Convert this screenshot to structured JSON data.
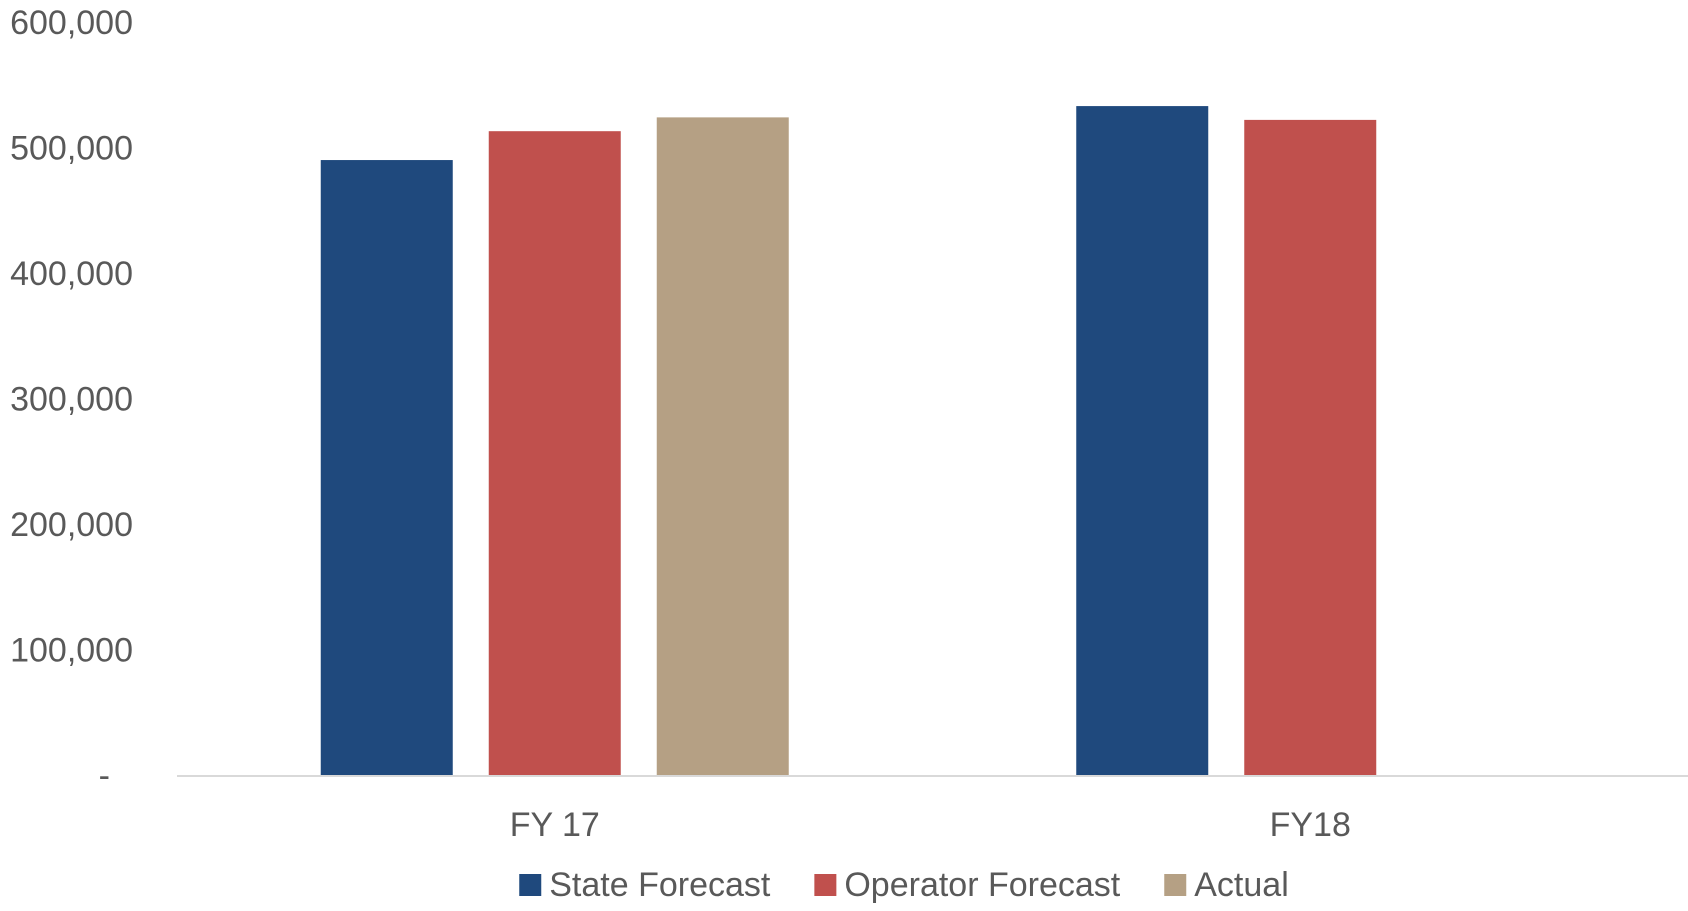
{
  "chart_data": {
    "type": "bar",
    "categories": [
      "FY 17",
      "FY18"
    ],
    "series": [
      {
        "name": "State Forecast",
        "values": [
          490000,
          533000
        ],
        "color": "#1f497d"
      },
      {
        "name": "Operator Forecast",
        "values": [
          513000,
          522000
        ],
        "color": "#c0504d"
      },
      {
        "name": "Actual",
        "values": [
          524000,
          null
        ],
        "color": "#b5a084"
      }
    ],
    "title": "",
    "xlabel": "",
    "ylabel": "",
    "ylim": [
      0,
      600000
    ],
    "yticks": [
      0,
      100000,
      200000,
      300000,
      400000,
      500000,
      600000
    ],
    "ytick_labels": [
      "-",
      "100,000",
      "200,000",
      "300,000",
      "400,000",
      "500,000",
      "600,000"
    ],
    "grid": false,
    "legend_position": "bottom"
  }
}
